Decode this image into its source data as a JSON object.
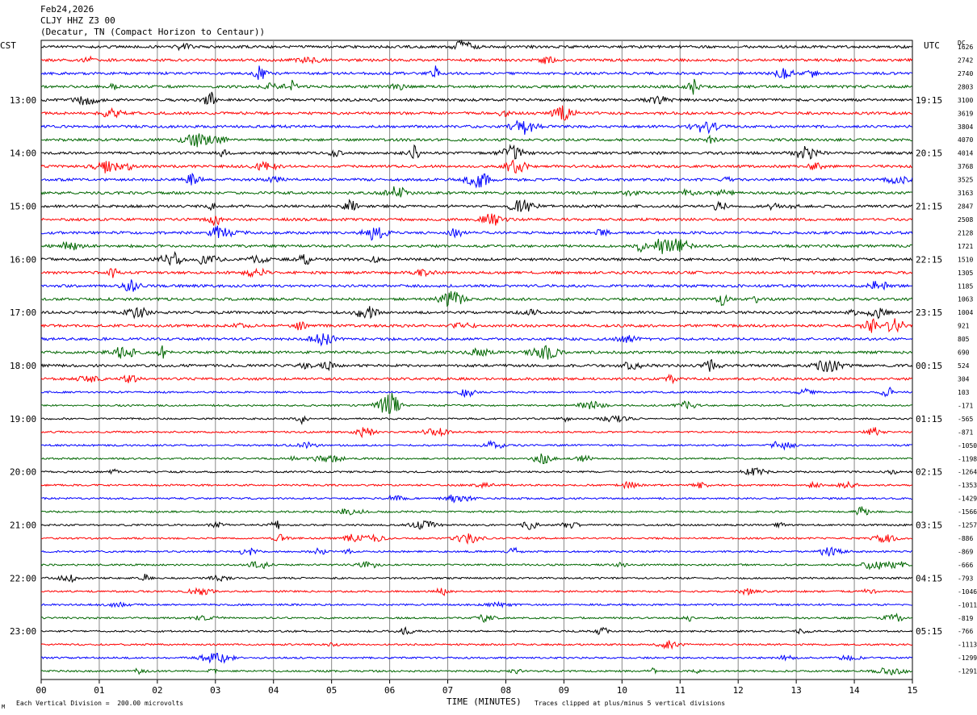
{
  "header": {
    "date": "Feb24,2026",
    "station": "CLJY HHZ Z3 00",
    "location": "(Decatur, TN (Compact Horizon to Centaur))"
  },
  "labels": {
    "left_zone": "CST",
    "right_zone": "UTC",
    "dc": "DC"
  },
  "footer": {
    "division": "Each Vertical Division =  200.00 microvolts",
    "xlabel": "TIME (MINUTES)",
    "clip": "Traces clipped at plus/minus 5 vertical divisions",
    "mark": "M"
  },
  "colors": {
    "trace_cycle": [
      "#000000",
      "#ff0000",
      "#0000ff",
      "#006600"
    ],
    "grid": "#888888"
  },
  "chart_data": {
    "type": "line",
    "xlabel": "TIME (MINUTES)",
    "xlim": [
      0,
      15
    ],
    "x_ticks": [
      "00",
      "01",
      "02",
      "03",
      "04",
      "05",
      "06",
      "07",
      "08",
      "09",
      "10",
      "11",
      "12",
      "13",
      "14",
      "15"
    ],
    "left_time_labels": [
      "13:00",
      "14:00",
      "15:00",
      "16:00",
      "17:00",
      "18:00",
      "19:00",
      "20:00",
      "21:00",
      "22:00",
      "23:00"
    ],
    "right_time_labels": [
      "19:15",
      "20:15",
      "21:15",
      "22:15",
      "23:15",
      "00:15",
      "01:15",
      "02:15",
      "03:15",
      "04:15",
      "05:15"
    ],
    "dc_offsets": [
      1626,
      2742,
      2740,
      2803,
      3100,
      3619,
      3804,
      4070,
      4014,
      3768,
      3525,
      3163,
      2847,
      2508,
      2128,
      1721,
      1510,
      1305,
      1185,
      1063,
      1004,
      921,
      805,
      690,
      524,
      304,
      103,
      -171,
      -565,
      -871,
      -1050,
      -1198,
      -1264,
      -1353,
      -1429,
      -1566,
      -1257,
      -886,
      -869,
      -666,
      -793,
      -1046,
      -1011,
      -819,
      -766,
      -1113,
      -1299,
      -1291
    ],
    "grid": true,
    "division_microvolts": 200.0
  }
}
